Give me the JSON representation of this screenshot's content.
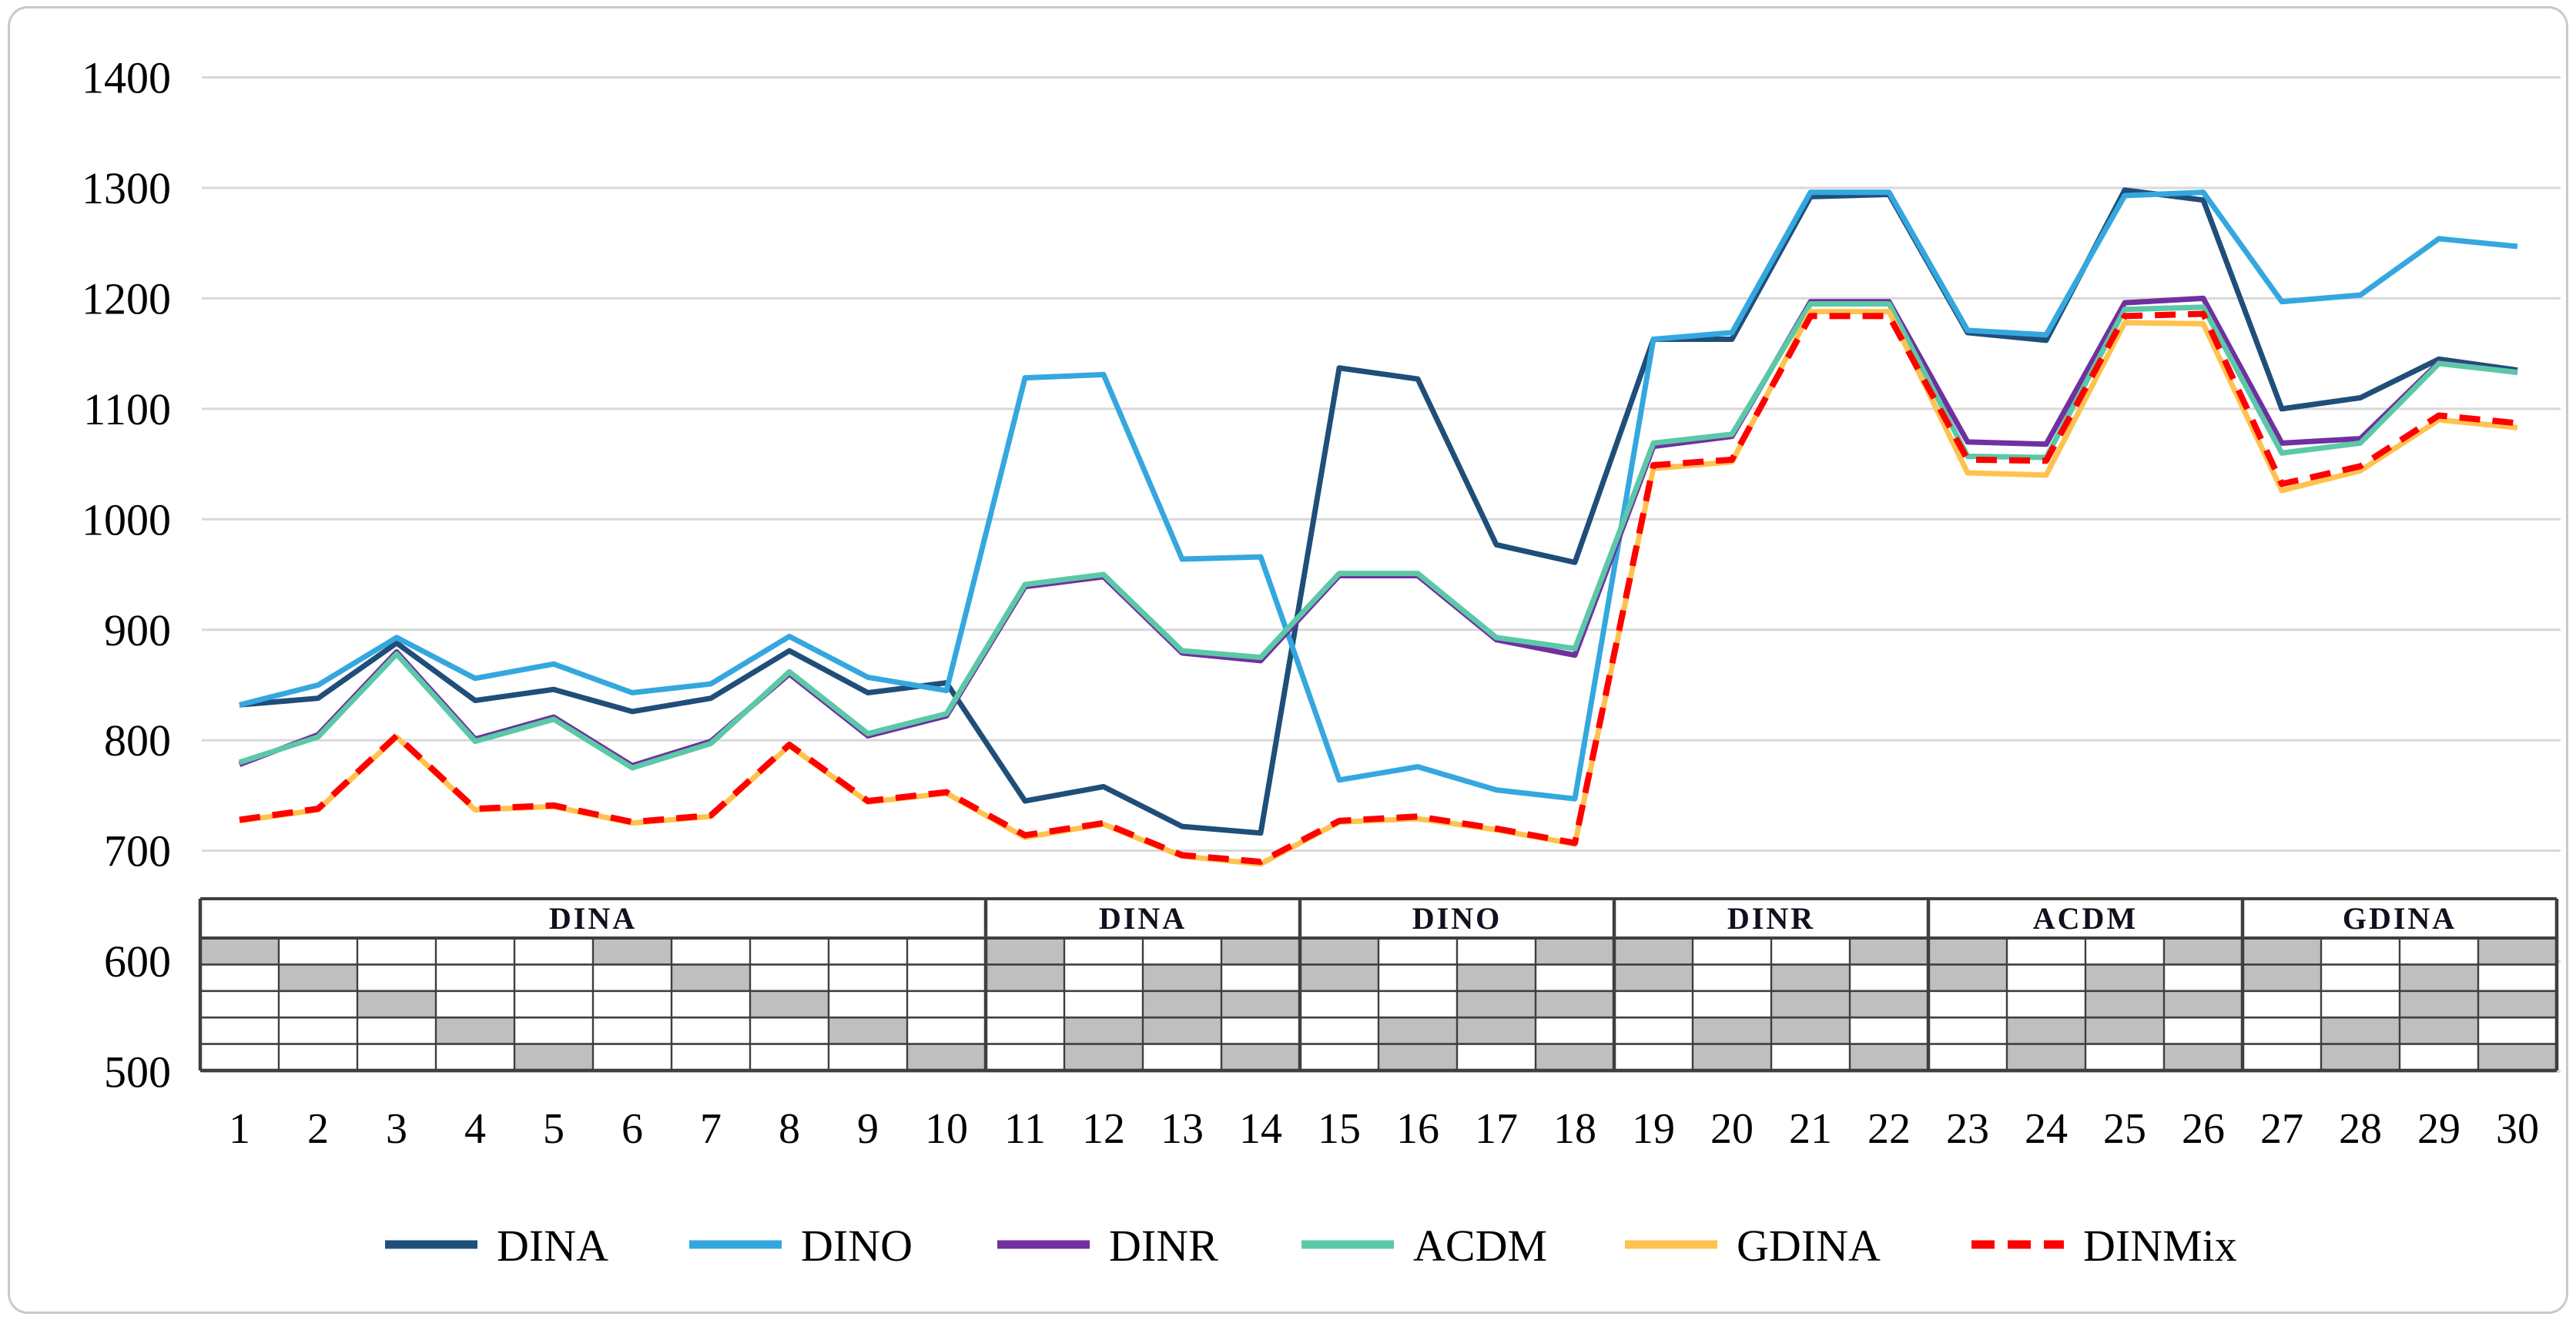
{
  "figure": {
    "background": "#ffffff",
    "frame_border_color": "#c9c9c9"
  },
  "chart_data": {
    "type": "line",
    "title": "",
    "xlabel": "",
    "ylabel": "",
    "categories": [
      1,
      2,
      3,
      4,
      5,
      6,
      7,
      8,
      9,
      10,
      11,
      12,
      13,
      14,
      15,
      16,
      17,
      18,
      19,
      20,
      21,
      22,
      23,
      24,
      25,
      26,
      27,
      28,
      29,
      30
    ],
    "y_axis": {
      "min": 500,
      "max": 1400,
      "step": 100,
      "tick_labels": [
        "1400",
        "1300",
        "1200",
        "1100",
        "1000",
        "900",
        "800",
        "700",
        "600",
        "500"
      ]
    },
    "grid": true,
    "gridline_color": "#d8d8d8",
    "legend_position": "bottom",
    "series": [
      {
        "name": "DINA",
        "color": "#1f4e79",
        "style": "solid",
        "values": [
          832,
          838,
          888,
          836,
          846,
          826,
          838,
          881,
          843,
          852,
          745,
          758,
          722,
          716,
          1137,
          1127,
          977,
          961,
          1163,
          1163,
          1292,
          1294,
          1169,
          1162,
          1298,
          1289,
          1100,
          1110,
          1145,
          1135
        ]
      },
      {
        "name": "DINO",
        "color": "#35a7df",
        "style": "solid",
        "values": [
          832,
          850,
          893,
          856,
          869,
          843,
          851,
          894,
          857,
          845,
          1128,
          1131,
          964,
          966,
          764,
          776,
          755,
          747,
          1163,
          1169,
          1296,
          1296,
          1171,
          1167,
          1293,
          1296,
          1197,
          1203,
          1254,
          1247
        ]
      },
      {
        "name": "DINR",
        "color": "#7030a0",
        "style": "solid",
        "values": [
          778,
          805,
          880,
          801,
          821,
          777,
          799,
          860,
          804,
          822,
          939,
          948,
          879,
          872,
          949,
          949,
          891,
          877,
          1066,
          1075,
          1197,
          1197,
          1070,
          1068,
          1196,
          1200,
          1069,
          1073,
          1142,
          1133
        ]
      },
      {
        "name": "ACDM",
        "color": "#5bc8a8",
        "style": "solid",
        "values": [
          780,
          803,
          878,
          799,
          819,
          775,
          797,
          862,
          806,
          824,
          941,
          950,
          881,
          875,
          951,
          951,
          893,
          883,
          1069,
          1077,
          1195,
          1195,
          1057,
          1056,
          1190,
          1192,
          1060,
          1069,
          1141,
          1133
        ]
      },
      {
        "name": "GDINA",
        "color": "#ffc24f",
        "style": "solid",
        "values": [
          727,
          737,
          803,
          737,
          740,
          725,
          731,
          795,
          744,
          752,
          712,
          724,
          695,
          688,
          726,
          729,
          719,
          706,
          1046,
          1052,
          1188,
          1188,
          1042,
          1040,
          1178,
          1177,
          1026,
          1044,
          1090,
          1083
        ]
      },
      {
        "name": "DINMix",
        "color": "#ff0000",
        "style": "dashed",
        "values": [
          728,
          738,
          804,
          738,
          741,
          726,
          732,
          796,
          745,
          753,
          714,
          725,
          696,
          690,
          727,
          731,
          720,
          707,
          1049,
          1054,
          1184,
          1184,
          1054,
          1053,
          1184,
          1186,
          1032,
          1048,
          1094,
          1087
        ]
      }
    ],
    "item_table": {
      "description": "Q-matrix strip under the lines: header row with generating-model block labels, 5 attribute rows, shaded cells mark measured attributes per item 1-30",
      "rows": 5,
      "fill_color": "#bfbfbf",
      "border_color": "#3f3f3f",
      "header_text_color": "#10101e",
      "blocks": [
        {
          "label": "DINA",
          "from": 1,
          "to": 10
        },
        {
          "label": "DINA",
          "from": 11,
          "to": 14
        },
        {
          "label": "DINO",
          "from": 15,
          "to": 18
        },
        {
          "label": "DINR",
          "from": 19,
          "to": 22
        },
        {
          "label": "ACDM",
          "from": 23,
          "to": 26
        },
        {
          "label": "GDINA",
          "from": 27,
          "to": 30
        }
      ],
      "filled_rows_per_item": [
        [
          1
        ],
        [
          2
        ],
        [
          3
        ],
        [
          4
        ],
        [
          5
        ],
        [
          1
        ],
        [
          2
        ],
        [
          3
        ],
        [
          4
        ],
        [
          5
        ],
        [
          1,
          2
        ],
        [
          4,
          5
        ],
        [
          2,
          3,
          4
        ],
        [
          1,
          3,
          5
        ],
        [
          1,
          2
        ],
        [
          4,
          5
        ],
        [
          2,
          3,
          4
        ],
        [
          1,
          3,
          5
        ],
        [
          1,
          2
        ],
        [
          4,
          5
        ],
        [
          2,
          3,
          4
        ],
        [
          1,
          3,
          5
        ],
        [
          1,
          2
        ],
        [
          4,
          5
        ],
        [
          2,
          3,
          4
        ],
        [
          1,
          3,
          5
        ],
        [
          1,
          2
        ],
        [
          4,
          5
        ],
        [
          2,
          3,
          4
        ],
        [
          1,
          3,
          5
        ]
      ]
    },
    "legend": [
      {
        "label": "DINA",
        "color": "#1f4e79",
        "style": "solid"
      },
      {
        "label": "DINO",
        "color": "#35a7df",
        "style": "solid"
      },
      {
        "label": "DINR",
        "color": "#7030a0",
        "style": "solid"
      },
      {
        "label": "ACDM",
        "color": "#5bc8a8",
        "style": "solid"
      },
      {
        "label": "GDINA",
        "color": "#ffc24f",
        "style": "solid"
      },
      {
        "label": "DINMix",
        "color": "#ff0000",
        "style": "dashed"
      }
    ]
  }
}
